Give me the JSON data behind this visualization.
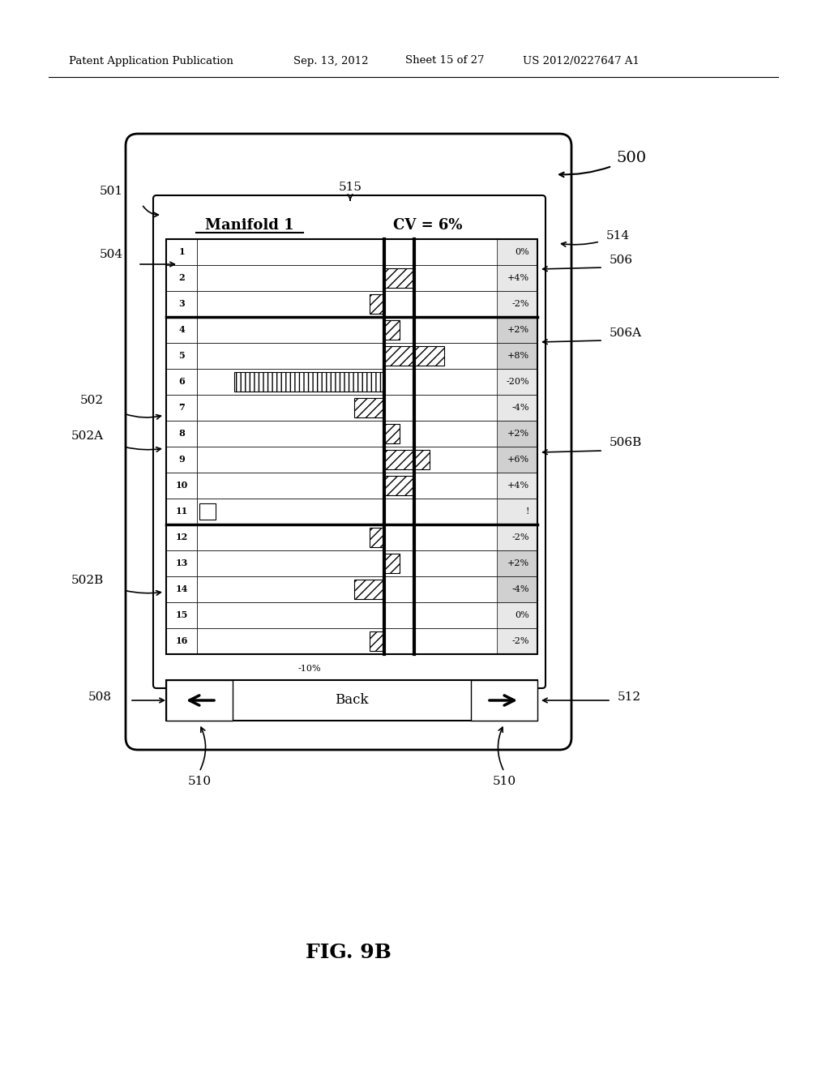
{
  "header_text": "Patent Application Publication",
  "header_date": "Sep. 13, 2012",
  "header_sheet": "Sheet 15 of 27",
  "header_patent": "US 2012/0227647 A1",
  "fig_label": "FIG. 9B",
  "device_label": "500",
  "label_501": "501",
  "label_502": "502",
  "label_502A": "502A",
  "label_502B": "502B",
  "label_504": "504",
  "label_506": "506",
  "label_506A": "506A",
  "label_506B": "506B",
  "label_508": "508",
  "label_510a": "510",
  "label_510b": "510",
  "label_512": "512",
  "label_514": "514",
  "label_515": "515",
  "manifold_title": "Manifold 1",
  "cv_title": "CV = 6%",
  "minus10_label": "-10%",
  "back_label": "Back",
  "rows": [
    {
      "num": 1,
      "value": 0,
      "label": "0%",
      "type": "normal"
    },
    {
      "num": 2,
      "value": 4,
      "label": "+4%",
      "type": "normal"
    },
    {
      "num": 3,
      "value": -2,
      "label": "-2%",
      "type": "normal"
    },
    {
      "num": 4,
      "value": 2,
      "label": "+2%",
      "type": "normal"
    },
    {
      "num": 5,
      "value": 8,
      "label": "+8%",
      "type": "normal"
    },
    {
      "num": 6,
      "value": -20,
      "label": "-20%",
      "type": "error"
    },
    {
      "num": 7,
      "value": -4,
      "label": "-4%",
      "type": "normal"
    },
    {
      "num": 8,
      "value": 2,
      "label": "+2%",
      "type": "normal"
    },
    {
      "num": 9,
      "value": 6,
      "label": "+6%",
      "type": "normal"
    },
    {
      "num": 10,
      "value": 4,
      "label": "+4%",
      "type": "normal"
    },
    {
      "num": 11,
      "value": -18,
      "label": "!",
      "type": "alert"
    },
    {
      "num": 12,
      "value": -2,
      "label": "-2%",
      "type": "normal"
    },
    {
      "num": 13,
      "value": 2,
      "label": "+2%",
      "type": "normal"
    },
    {
      "num": 14,
      "value": -4,
      "label": "-4%",
      "type": "normal"
    },
    {
      "num": 15,
      "value": 0,
      "label": "0%",
      "type": "normal"
    },
    {
      "num": 16,
      "value": -2,
      "label": "-2%",
      "type": "normal"
    }
  ],
  "background_color": "#ffffff",
  "separator_rows": [
    3,
    11
  ],
  "dark_rows": [
    4,
    5,
    8,
    9,
    13,
    14
  ],
  "scale_min": -25,
  "scale_max": 15,
  "second_line_value": 4
}
